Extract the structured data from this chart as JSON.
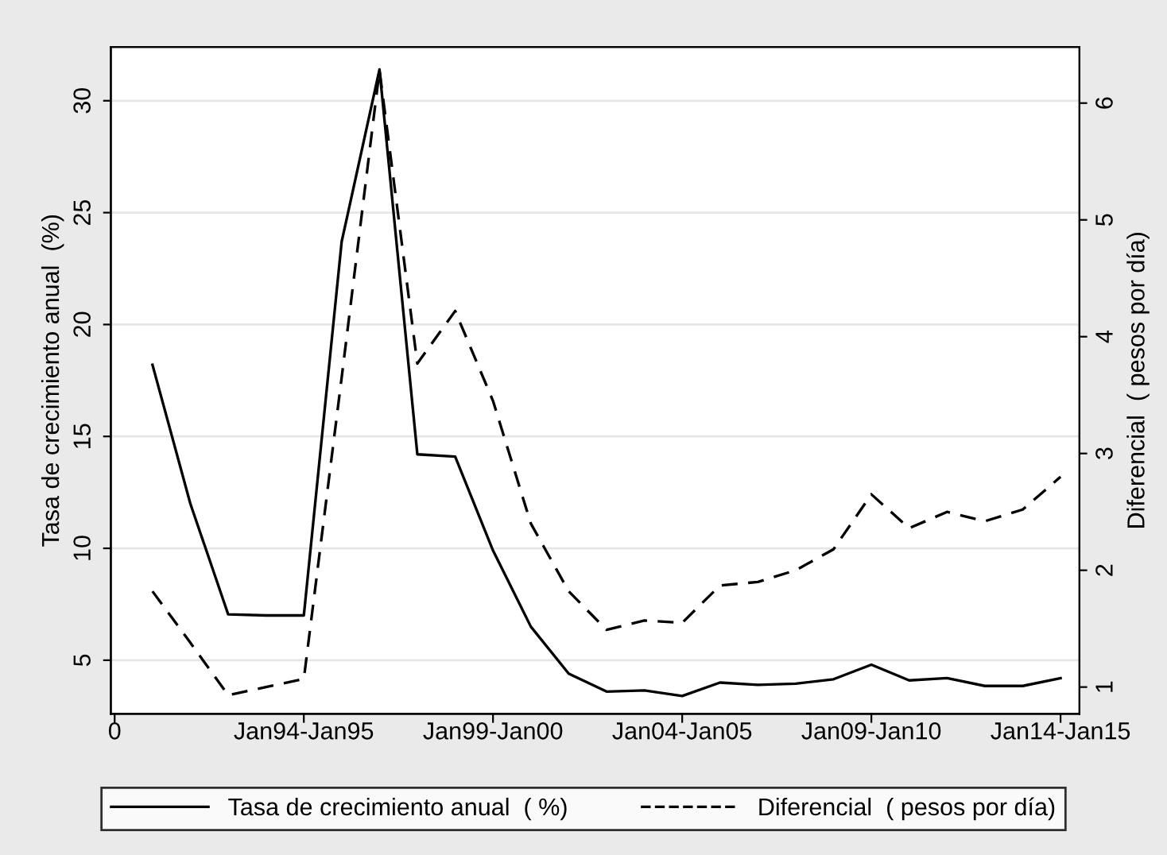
{
  "chart_data": {
    "type": "line",
    "categories": [
      "0",
      null,
      null,
      null,
      null,
      "Jan94-Jan95",
      null,
      null,
      null,
      null,
      "Jan99-Jan00",
      null,
      null,
      null,
      null,
      "Jan04-Jan05",
      null,
      null,
      null,
      null,
      "Jan09-Jan10",
      null,
      null,
      null,
      null,
      "Jan14-Jan15"
    ],
    "series": [
      {
        "name": "Tasa de crecimiento anual  ( %)",
        "color": "#000000",
        "line_style": "solid",
        "values": [
          null,
          18.2,
          12.0,
          7.05,
          7.0,
          7.0,
          23.7,
          31.4,
          14.2,
          14.1,
          9.9,
          6.5,
          4.4,
          3.6,
          3.65,
          3.4,
          4.0,
          3.9,
          3.95,
          4.15,
          4.8,
          4.1,
          4.2,
          3.85,
          3.85,
          4.2
        ]
      },
      {
        "name": "Diferencial  ( pesos por día)",
        "color": "#000000",
        "line_style": "dashed",
        "axis": "y2",
        "values": [
          null,
          1.82,
          1.38,
          0.93,
          1.0,
          1.07,
          3.65,
          6.28,
          3.77,
          4.22,
          3.45,
          2.4,
          1.82,
          1.49,
          1.57,
          1.55,
          1.87,
          1.9,
          2.0,
          2.18,
          2.65,
          2.36,
          2.5,
          2.42,
          2.52,
          2.8
        ]
      }
    ],
    "ylabel": "Tasa de crecimiento anual  (%)",
    "y2label": "Diferencial  ( pesos por día)",
    "ylim": [
      2.6,
      32.4
    ],
    "yticks": [
      5,
      10,
      15,
      20,
      25,
      30
    ],
    "y2lim": [
      0.77,
      6.48
    ],
    "y2ticks": [
      1,
      2,
      3,
      4,
      5,
      6
    ],
    "grid": "y",
    "legend": "bottom",
    "marker": "none"
  }
}
